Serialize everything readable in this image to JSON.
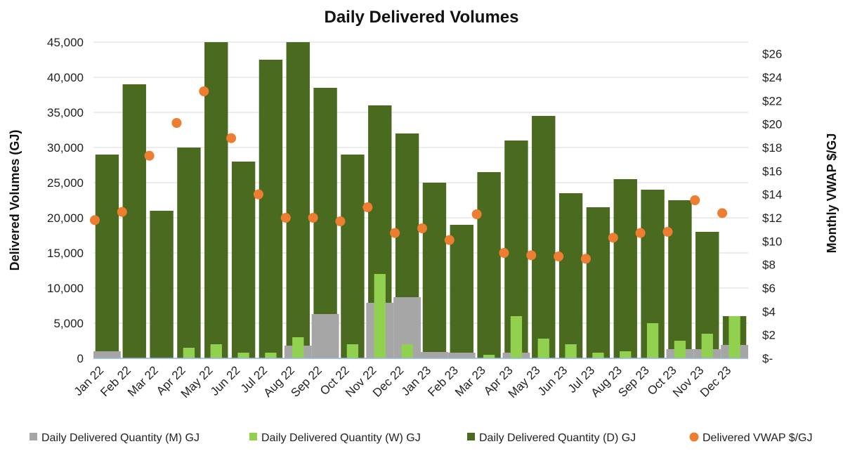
{
  "chart_data": {
    "type": "bar",
    "title": "Daily Delivered Volumes",
    "ylabel": "Delivered Volumes (GJ)",
    "y2label": "Monthly VWAP $/GJ",
    "ylim": [
      0,
      45000
    ],
    "y2lim": [
      0,
      27
    ],
    "yticks": [
      0,
      5000,
      10000,
      15000,
      20000,
      25000,
      30000,
      35000,
      40000,
      45000
    ],
    "yticklabels": [
      "0",
      "5,000",
      "10,000",
      "15,000",
      "20,000",
      "25,000",
      "30,000",
      "35,000",
      "40,000",
      "45,000"
    ],
    "y2ticks": [
      0,
      2,
      4,
      6,
      8,
      10,
      12,
      14,
      16,
      18,
      20,
      22,
      24,
      26
    ],
    "y2ticklabels": [
      "$-",
      "$2",
      "$4",
      "$6",
      "$8",
      "$10",
      "$12",
      "$14",
      "$16",
      "$18",
      "$20",
      "$22",
      "$24",
      "$26"
    ],
    "categories": [
      "Jan 22",
      "Feb 22",
      "Mar 22",
      "Apr 22",
      "May 22",
      "Jun 22",
      "Jul 22",
      "Aug 22",
      "Sep 22",
      "Oct 22",
      "Nov 22",
      "Dec 22",
      "Jan 23",
      "Feb 23",
      "Mar 23",
      "Apr 23",
      "May 23",
      "Jun 23",
      "Jul 23",
      "Aug 23",
      "Sep 23",
      "Oct 23",
      "Nov 23",
      "Dec 23"
    ],
    "series": [
      {
        "name": "Daily Delivered Quantity (M) GJ",
        "color": "#a6a6a6",
        "kind": "area",
        "values": [
          1000,
          0,
          0,
          0,
          0,
          0,
          0,
          1800,
          6300,
          0,
          7900,
          8700,
          900,
          800,
          0,
          800,
          0,
          0,
          0,
          0,
          0,
          1300,
          1300,
          1900
        ]
      },
      {
        "name": "Daily Delivered Quantity (W) GJ",
        "color": "#92d050",
        "kind": "bar",
        "values": [
          0,
          0,
          0,
          1500,
          2000,
          800,
          800,
          3000,
          0,
          2000,
          12000,
          2000,
          0,
          0,
          500,
          6000,
          2800,
          2000,
          800,
          1000,
          5000,
          2500,
          3500,
          6000
        ]
      },
      {
        "name": "Daily Delivered Quantity (D) GJ",
        "color": "#4a6b1f",
        "kind": "bar",
        "values": [
          29000,
          39000,
          21000,
          30000,
          45000,
          28000,
          42500,
          45000,
          38500,
          29000,
          36000,
          32000,
          25000,
          19000,
          26500,
          31000,
          34500,
          23500,
          21500,
          25500,
          24000,
          22500,
          18000,
          6000
        ]
      },
      {
        "name": "Delivered VWAP $/GJ",
        "color": "#ed7d31",
        "kind": "scatter",
        "values": [
          11.8,
          12.5,
          17.3,
          20.1,
          22.8,
          18.8,
          14.0,
          12.0,
          12.0,
          11.7,
          12.9,
          10.7,
          11.1,
          10.1,
          12.3,
          9.0,
          8.8,
          8.7,
          8.5,
          10.3,
          10.7,
          10.8,
          13.5,
          12.4
        ]
      }
    ],
    "legend": "bottom",
    "grid": true
  }
}
